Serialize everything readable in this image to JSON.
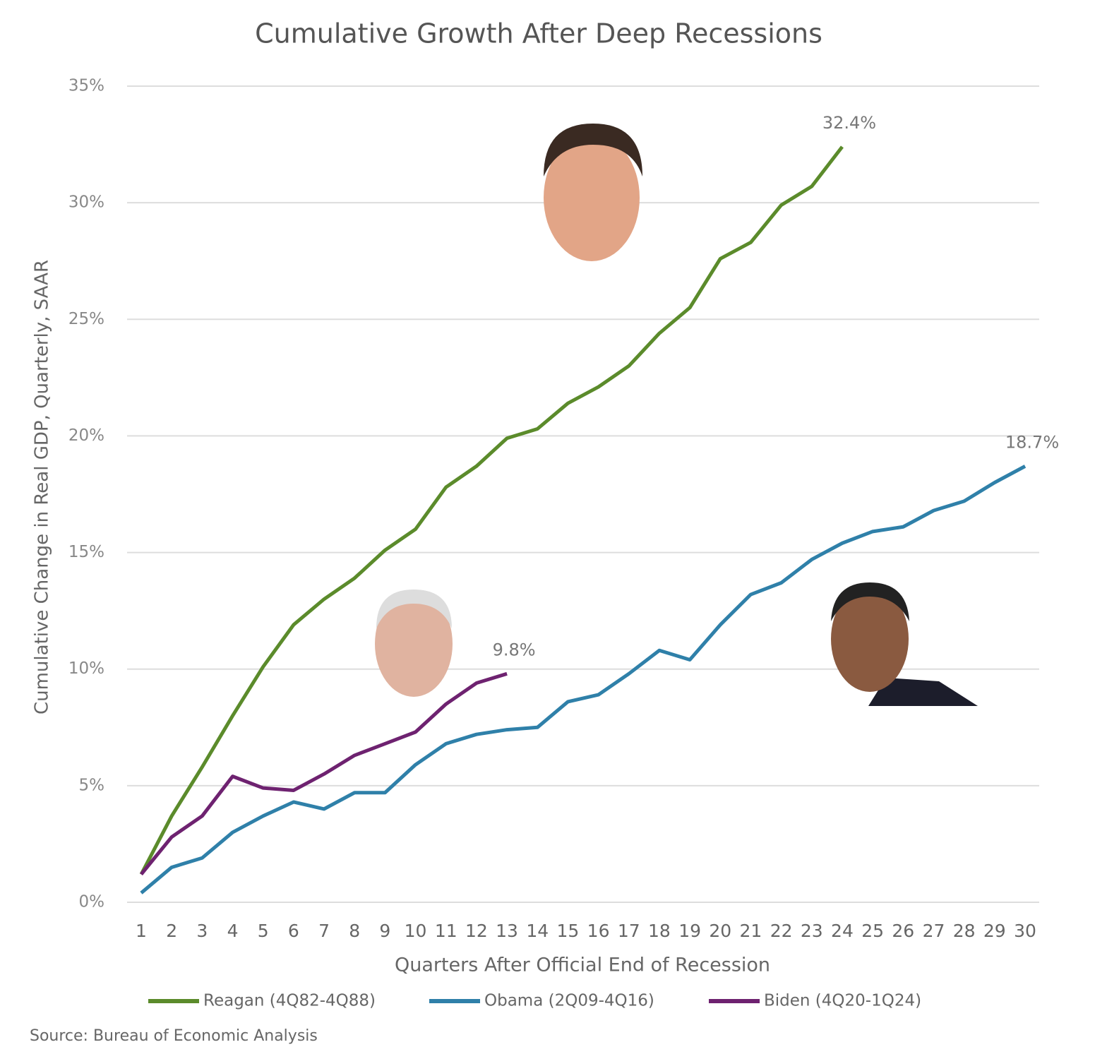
{
  "chart_data": {
    "type": "line",
    "title": "Cumulative Growth After Deep Recessions",
    "x_label": "Quarters After Official End of Recession",
    "y_label": "Cumulative Change in Real GDP, Quarterly, SAAR",
    "source": "Source: Bureau of Economic Analysis",
    "x": [
      1,
      2,
      3,
      4,
      5,
      6,
      7,
      8,
      9,
      10,
      11,
      12,
      13,
      14,
      15,
      16,
      17,
      18,
      19,
      20,
      21,
      22,
      23,
      24,
      25,
      26,
      27,
      28,
      29,
      30
    ],
    "xlim": [
      1,
      30
    ],
    "xticks": [
      1,
      2,
      3,
      4,
      5,
      6,
      7,
      8,
      9,
      10,
      11,
      12,
      13,
      14,
      15,
      16,
      17,
      18,
      19,
      20,
      21,
      22,
      23,
      24,
      25,
      26,
      27,
      28,
      29,
      30
    ],
    "ylim": [
      0,
      35
    ],
    "yticks": [
      {
        "value": 0,
        "label": "0%"
      },
      {
        "value": 5,
        "label": "5%"
      },
      {
        "value": 10,
        "label": "10%"
      },
      {
        "value": 15,
        "label": "15%"
      },
      {
        "value": 20,
        "label": "20%"
      },
      {
        "value": 25,
        "label": "25%"
      },
      {
        "value": 30,
        "label": "30%"
      },
      {
        "value": 35,
        "label": "35%"
      }
    ],
    "grid": true,
    "legend": "bottom",
    "series": [
      {
        "name": "Reagan (4Q82-4Q88)",
        "color": "#5b8b2b",
        "values": [
          1.2,
          3.7,
          5.8,
          8.0,
          10.1,
          11.9,
          13.0,
          13.9,
          15.1,
          16.0,
          17.8,
          18.7,
          19.9,
          20.3,
          21.4,
          22.1,
          23.0,
          24.4,
          25.5,
          27.6,
          28.3,
          29.9,
          30.7,
          32.4,
          null,
          null,
          null,
          null,
          null,
          null
        ],
        "value_labels": [
          null,
          null,
          null,
          null,
          null,
          null,
          null,
          null,
          null,
          null,
          null,
          null,
          null,
          null,
          null,
          null,
          null,
          null,
          null,
          null,
          null,
          null,
          null,
          "32.4%",
          null,
          null,
          null,
          null,
          null,
          null
        ]
      },
      {
        "name": "Obama (2Q09-4Q16)",
        "color": "#2f80a9",
        "values": [
          0.4,
          1.5,
          1.9,
          3.0,
          3.7,
          4.3,
          4.0,
          4.7,
          4.7,
          5.9,
          6.8,
          7.2,
          7.4,
          7.5,
          8.6,
          8.9,
          9.8,
          10.8,
          10.4,
          11.9,
          13.2,
          13.7,
          14.7,
          15.4,
          15.9,
          16.1,
          16.8,
          17.2,
          18.0,
          18.7
        ],
        "value_labels": [
          null,
          null,
          null,
          null,
          null,
          null,
          null,
          null,
          null,
          null,
          null,
          null,
          null,
          null,
          null,
          null,
          null,
          null,
          null,
          null,
          null,
          null,
          null,
          null,
          null,
          null,
          null,
          null,
          null,
          "18.7%"
        ]
      },
      {
        "name": "Biden (4Q20-1Q24)",
        "color": "#6e2270",
        "values": [
          1.2,
          2.8,
          3.7,
          5.4,
          4.9,
          4.8,
          5.5,
          6.3,
          6.8,
          7.3,
          8.5,
          9.4,
          9.8,
          null,
          null,
          null,
          null,
          null,
          null,
          null,
          null,
          null,
          null,
          null,
          null,
          null,
          null,
          null,
          null,
          null
        ],
        "value_labels": [
          null,
          null,
          null,
          null,
          null,
          null,
          null,
          null,
          null,
          null,
          null,
          null,
          "9.8%",
          null,
          null,
          null,
          null,
          null,
          null,
          null,
          null,
          null,
          null,
          null,
          null,
          null,
          null,
          null,
          null,
          null
        ]
      }
    ]
  }
}
